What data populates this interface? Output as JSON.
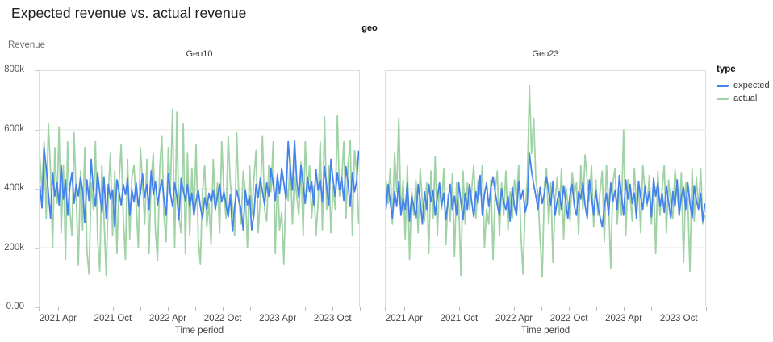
{
  "title": "Expected revenue vs. actual revenue",
  "chart_data": {
    "type": "line",
    "facet_field": "geo",
    "xlabel": "Time period",
    "ylabel": "Revenue",
    "legend_title": "type",
    "legend_position": "right",
    "grid": true,
    "x_range": [
      "2021 Jan",
      "2024 Jan"
    ],
    "y_axis": {
      "max": 800,
      "unit": "thousands",
      "gridlines": [
        200,
        400,
        600
      ],
      "tick_labels": [
        {
          "v": 800,
          "label": "800k"
        },
        {
          "v": 600,
          "label": "600k"
        },
        {
          "v": 400,
          "label": "400k"
        },
        {
          "v": 200,
          "label": "200k"
        },
        {
          "v": 0,
          "label": "0.00"
        }
      ]
    },
    "x_ticks": [
      {
        "f": 0.0
      },
      {
        "f": 0.06,
        "label": "2021 Apr"
      },
      {
        "f": 0.146
      },
      {
        "f": 0.231,
        "label": "2021 Oct"
      },
      {
        "f": 0.317
      },
      {
        "f": 0.402,
        "label": "2022 Apr"
      },
      {
        "f": 0.487
      },
      {
        "f": 0.573,
        "label": "2022 Oct"
      },
      {
        "f": 0.658
      },
      {
        "f": 0.744,
        "label": "2023 Apr"
      },
      {
        "f": 0.829
      },
      {
        "f": 0.915,
        "label": "2023 Oct"
      },
      {
        "f": 1.0
      }
    ],
    "series": [
      {
        "id": "expected",
        "name": "expected",
        "color": "#4583ec"
      },
      {
        "id": "actual",
        "name": "actual",
        "color": "#9fd2a4"
      }
    ],
    "facets": [
      {
        "title": "Geo10",
        "expected": [
          412,
          335,
          540,
          470,
          385,
          300,
          455,
          375,
          420,
          345,
          480,
          365,
          430,
          310,
          405,
          455,
          350,
          415,
          375,
          440,
          395,
          285,
          430,
          360,
          500,
          395,
          340,
          455,
          385,
          320,
          440,
          300,
          415,
          365,
          395,
          270,
          430,
          390,
          345,
          415,
          380,
          435,
          310,
          395,
          355,
          420,
          340,
          385,
          450,
          370,
          415,
          330,
          460,
          380,
          425,
          345,
          395,
          430,
          365,
          310,
          450,
          385,
          340,
          420,
          375,
          295,
          435,
          395,
          360,
          415,
          340,
          385,
          310,
          360,
          395,
          340,
          300,
          370,
          330,
          385,
          355,
          395,
          330,
          375,
          415,
          355,
          390,
          345,
          305,
          380,
          255,
          340,
          395,
          360,
          330,
          260,
          395,
          345,
          375,
          260,
          310,
          415,
          370,
          435,
          390,
          345,
          420,
          375,
          470,
          415,
          360,
          445,
          385,
          470,
          420,
          365,
          560,
          475,
          395,
          565,
          430,
          370,
          480,
          415,
          350,
          440,
          390,
          425,
          345,
          465,
          395,
          430,
          355,
          475,
          405,
          345,
          500,
          430,
          375,
          455,
          395,
          440,
          360,
          475,
          420,
          340,
          455,
          390,
          425,
          530
        ],
        "actual": [
          505,
          390,
          560,
          300,
          620,
          460,
          200,
          540,
          350,
          610,
          250,
          480,
          160,
          560,
          330,
          240,
          590,
          380,
          140,
          460,
          260,
          540,
          190,
          110,
          420,
          330,
          560,
          230,
          120,
          480,
          300,
          105,
          390,
          520,
          240,
          460,
          180,
          420,
          550,
          300,
          160,
          500,
          230,
          440,
          480,
          350,
          200,
          540,
          420,
          280,
          500,
          180,
          430,
          520,
          260,
          155,
          470,
          580,
          310,
          220,
          540,
          390,
          670,
          200,
          660,
          300,
          250,
          620,
          180,
          520,
          240,
          470,
          310,
          550,
          230,
          145,
          390,
          480,
          270,
          350,
          210,
          500,
          330,
          420,
          250,
          560,
          380,
          300,
          580,
          420,
          340,
          240,
          590,
          360,
          280,
          460,
          390,
          200,
          480,
          310,
          430,
          530,
          250,
          370,
          580,
          330,
          290,
          480,
          390,
          560,
          180,
          450,
          260,
          320,
          145,
          420,
          360,
          510,
          280,
          440,
          380,
          310,
          490,
          240,
          560,
          390,
          480,
          300,
          410,
          240,
          350,
          560,
          260,
          645,
          330,
          480,
          250,
          410,
          330,
          650,
          375,
          420,
          560,
          300,
          480,
          565,
          240,
          530,
          460,
          280
        ]
      },
      {
        "title": "Geo23",
        "expected": [
          330,
          415,
          355,
          300,
          390,
          340,
          425,
          310,
          365,
          330,
          420,
          290,
          375,
          340,
          300,
          415,
          360,
          280,
          390,
          330,
          415,
          355,
          395,
          310,
          370,
          420,
          340,
          385,
          295,
          360,
          415,
          330,
          375,
          310,
          420,
          355,
          295,
          385,
          330,
          415,
          360,
          305,
          390,
          350,
          445,
          310,
          380,
          420,
          340,
          400,
          440,
          390,
          345,
          310,
          400,
          355,
          330,
          375,
          290,
          405,
          340,
          310,
          425,
          365,
          395,
          320,
          350,
          520,
          460,
          415,
          375,
          330,
          405,
          350,
          385,
          440,
          395,
          345,
          425,
          310,
          360,
          390,
          330,
          410,
          355,
          300,
          380,
          415,
          340,
          310,
          390,
          365,
          420,
          345,
          300,
          430,
          375,
          310,
          395,
          340,
          305,
          270,
          340,
          385,
          310,
          420,
          355,
          395,
          330,
          445,
          380,
          310,
          430,
          365,
          415,
          350,
          385,
          300,
          425,
          370,
          330,
          410,
          350,
          390,
          305,
          435,
          375,
          420,
          340,
          385,
          320,
          410,
          355,
          300,
          390,
          340,
          430,
          310,
          375,
          405,
          330,
          420,
          350,
          300,
          410,
          360,
          330,
          385,
          290,
          350
        ],
        "actual": [
          430,
          350,
          470,
          280,
          520,
          390,
          640,
          310,
          430,
          230,
          480,
          160,
          390,
          310,
          430,
          250,
          470,
          350,
          290,
          420,
          180,
          460,
          300,
          510,
          240,
          420,
          330,
          470,
          210,
          380,
          290,
          450,
          170,
          420,
          350,
          105,
          460,
          280,
          420,
          330,
          390,
          480,
          300,
          430,
          380,
          480,
          200,
          330,
          280,
          430,
          160,
          390,
          460,
          240,
          420,
          310,
          460,
          260,
          390,
          300,
          430,
          360,
          480,
          250,
          110,
          330,
          420,
          750,
          520,
          640,
          430,
          380,
          230,
          100,
          410,
          470,
          280,
          420,
          150,
          360,
          440,
          310,
          470,
          230,
          410,
          350,
          290,
          455,
          380,
          420,
          245,
          480,
          330,
          515,
          430,
          360,
          480,
          270,
          430,
          310,
          390,
          460,
          220,
          480,
          350,
          130,
          420,
          470,
          280,
          390,
          310,
          600,
          240,
          430,
          380,
          290,
          470,
          330,
          410,
          250,
          480,
          390,
          340,
          445,
          280,
          420,
          180,
          460,
          310,
          400,
          480,
          250,
          430,
          350,
          300,
          465,
          390,
          310,
          455,
          150,
          420,
          360,
          120,
          470,
          290,
          440,
          330,
          470,
          280,
          310
        ]
      }
    ]
  }
}
